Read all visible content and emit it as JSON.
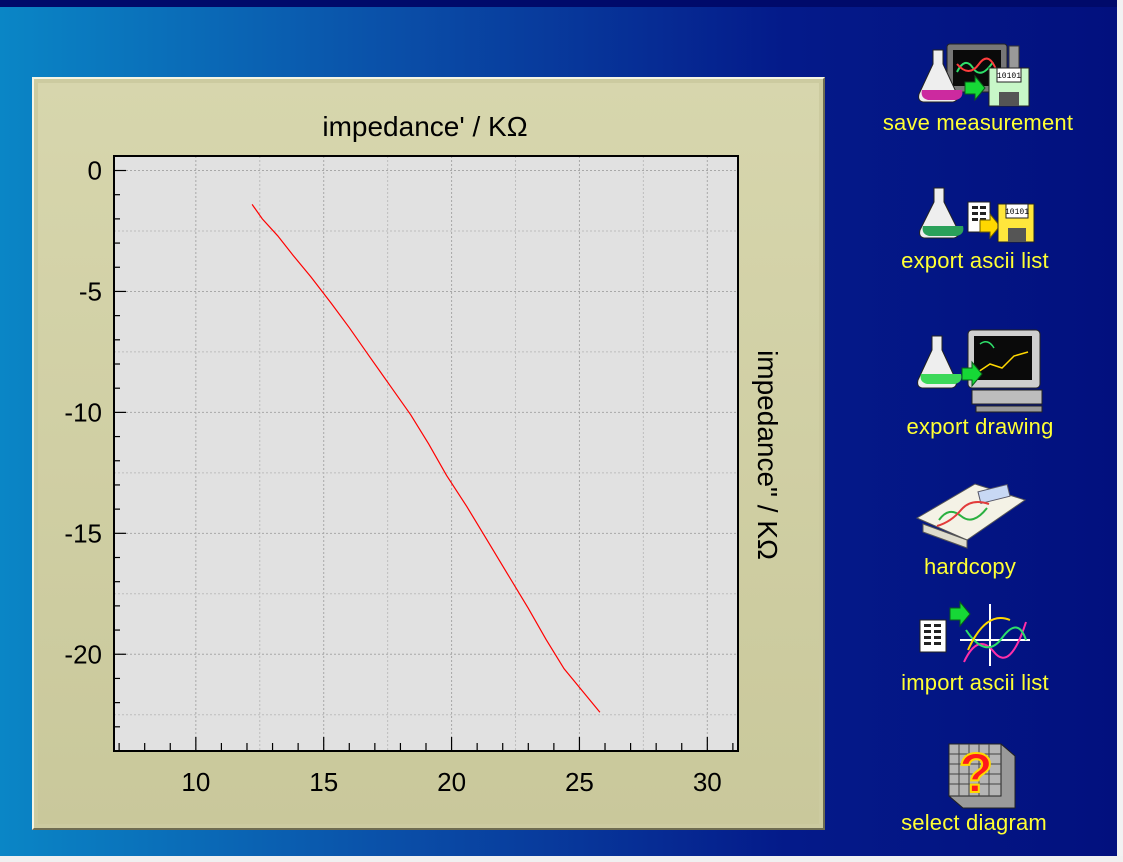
{
  "colors": {
    "background_left": "#0a86c6",
    "background_right": "#02107e",
    "panel": "#cccba0",
    "plot_area": "#e1e1e1",
    "curve": "#ff0000",
    "button_text": "#ffff33"
  },
  "toolbar": {
    "buttons": [
      {
        "label": "save measurement",
        "icon": "flask-monitor-disk-icon"
      },
      {
        "label": "export ascii list",
        "icon": "flask-list-disk-icon"
      },
      {
        "label": "export drawing",
        "icon": "flask-computer-icon"
      },
      {
        "label": "hardcopy",
        "icon": "printout-icon"
      },
      {
        "label": "import ascii list",
        "icon": "list-arrow-graph-icon"
      },
      {
        "label": "select diagram",
        "icon": "question-cube-icon"
      }
    ]
  },
  "chart_data": {
    "type": "line",
    "xlabel": "impedance' /  KΩ",
    "ylabel": "impedance\" /  KΩ",
    "xlim": [
      6.8,
      31.2
    ],
    "ylim": [
      -24,
      0.6
    ],
    "xticks": [
      10,
      15,
      20,
      25,
      30
    ],
    "yticks": [
      0,
      -5,
      -10,
      -15,
      -20
    ],
    "grid": true,
    "series": [
      {
        "color": "#ff0000",
        "x": [
          12.2,
          12.6,
          13.2,
          13.8,
          14.5,
          15.3,
          16.0,
          16.8,
          17.6,
          18.4,
          19.1,
          19.8,
          20.6,
          21.4,
          22.2,
          23.0,
          23.7,
          24.4,
          25.1,
          25.8
        ],
        "y": [
          -1.4,
          -2.0,
          -2.7,
          -3.5,
          -4.4,
          -5.5,
          -6.5,
          -7.7,
          -8.9,
          -10.1,
          -11.3,
          -12.6,
          -13.9,
          -15.3,
          -16.7,
          -18.1,
          -19.4,
          -20.6,
          -21.5,
          -22.4
        ]
      }
    ]
  }
}
